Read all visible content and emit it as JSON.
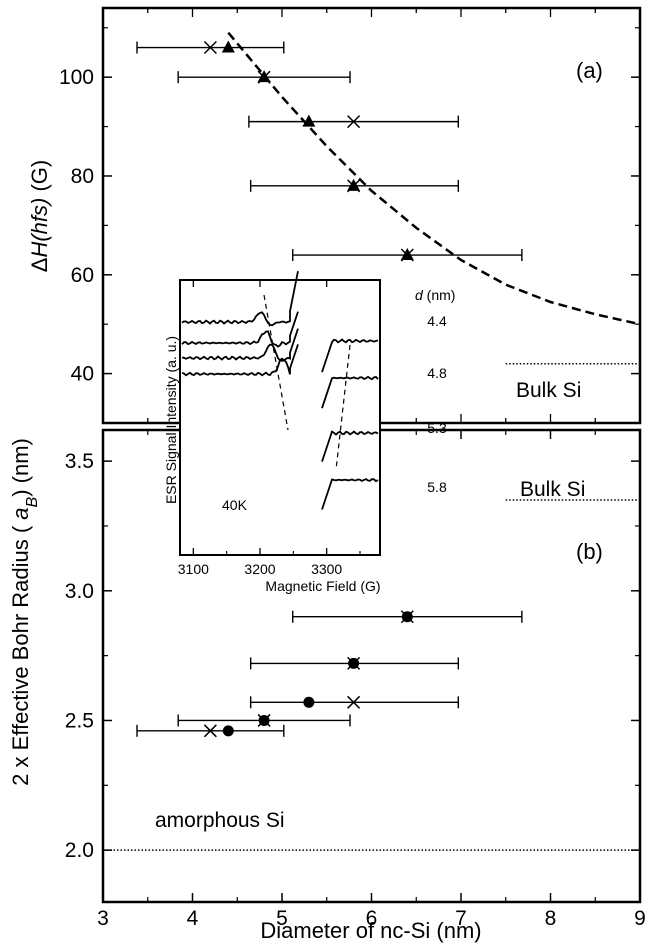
{
  "chart_data": [
    {
      "panel": "(a)",
      "type": "scatter",
      "ylabel": "ΔH(hfs) (G)",
      "ylim": [
        30,
        114
      ],
      "yticks": [
        40,
        60,
        80,
        100
      ],
      "xlim": [
        3,
        9
      ],
      "series": [
        {
          "marker": "triangle",
          "x": [
            4.4,
            4.8,
            5.3,
            5.8,
            6.4
          ],
          "y": [
            106,
            100,
            91,
            78,
            64
          ]
        },
        {
          "marker": "cross",
          "x": [
            4.2,
            4.8,
            5.8,
            5.8,
            6.4
          ],
          "y": [
            106,
            100,
            91,
            78,
            64
          ]
        }
      ],
      "error_bars_x": [
        {
          "y": 106,
          "xmin": 3.38,
          "xmax": 5.02
        },
        {
          "y": 100,
          "xmin": 3.84,
          "xmax": 5.76
        },
        {
          "y": 91,
          "xmin": 4.63,
          "xmax": 6.97
        },
        {
          "y": 78,
          "xmin": 4.65,
          "xmax": 6.97
        },
        {
          "y": 64,
          "xmin": 5.12,
          "xmax": 7.68
        }
      ],
      "fit_curve": {
        "style": "dashed",
        "x": [
          4.4,
          5.0,
          5.5,
          6.0,
          6.5,
          7.0,
          7.5,
          8.0,
          8.5,
          9.0
        ],
        "y": [
          109,
          96,
          86,
          77,
          69.5,
          63,
          58,
          54.5,
          52,
          50
        ]
      },
      "reference_line": {
        "label": "Bulk Si",
        "y": 42,
        "xmin": 7.5,
        "xmax": 9,
        "style": "dotted"
      }
    },
    {
      "panel": "(b)",
      "type": "scatter",
      "xlabel": "Diameter of nc-Si (nm)",
      "ylabel": "2 x Effective Bohr Radius ( a_B) (nm)",
      "ylabel_prefix": "2 x Effective Bohr Radius ( ",
      "ylabel_var": "a",
      "ylabel_sub": "B",
      "ylabel_suffix": ") (nm)",
      "xlim": [
        3,
        9
      ],
      "xticks": [
        3,
        4,
        5,
        6,
        7,
        8,
        9
      ],
      "ylim": [
        1.8,
        3.62
      ],
      "yticks": [
        "2.0",
        "2.5",
        "3.0",
        "3.5"
      ],
      "series": [
        {
          "marker": "circle",
          "x": [
            4.4,
            4.8,
            5.3,
            5.8,
            6.4
          ],
          "y": [
            2.46,
            2.5,
            2.57,
            2.72,
            2.9
          ]
        },
        {
          "marker": "cross",
          "x": [
            4.2,
            4.8,
            5.8,
            5.8,
            6.4
          ],
          "y": [
            2.46,
            2.5,
            2.57,
            2.72,
            2.9
          ]
        }
      ],
      "error_bars_x": [
        {
          "y": 2.46,
          "xmin": 3.38,
          "xmax": 5.02
        },
        {
          "y": 2.5,
          "xmin": 3.84,
          "xmax": 5.76
        },
        {
          "y": 2.57,
          "xmin": 4.65,
          "xmax": 6.97
        },
        {
          "y": 2.72,
          "xmin": 4.65,
          "xmax": 6.97
        },
        {
          "y": 2.9,
          "xmin": 5.12,
          "xmax": 7.68
        }
      ],
      "reference_lines": [
        {
          "label": "Bulk Si",
          "y": 3.35,
          "xmin": 7.5,
          "xmax": 9,
          "style": "dotted"
        },
        {
          "label": "amorphous Si",
          "y": 2.0,
          "xmin": 3,
          "xmax": 9,
          "style": "dotted"
        }
      ]
    },
    {
      "panel": "inset",
      "type": "line",
      "xlabel": "Magnetic Field (G)",
      "ylabel": "ESR Signal Intensity (a. u.)",
      "xlim": [
        3080,
        3380
      ],
      "xticks": [
        3100,
        3200,
        3300
      ],
      "temperature": "40K",
      "legend_title_var": "d",
      "legend_title_unit": " (nm)",
      "spectra_labels": [
        "4.4",
        "4.8",
        "5.3",
        "5.8"
      ]
    }
  ],
  "labels": {
    "panel_a": "(a)",
    "panel_b": "(b)",
    "bulk_si": "Bulk Si",
    "amorphous_si": "amorphous Si",
    "ylabel_a_delta": "Δ",
    "ylabel_a_var": "H(hfs)",
    "ylabel_a_unit": " (G)"
  },
  "colors": {
    "ink": "#000000",
    "background": "#ffffff"
  }
}
